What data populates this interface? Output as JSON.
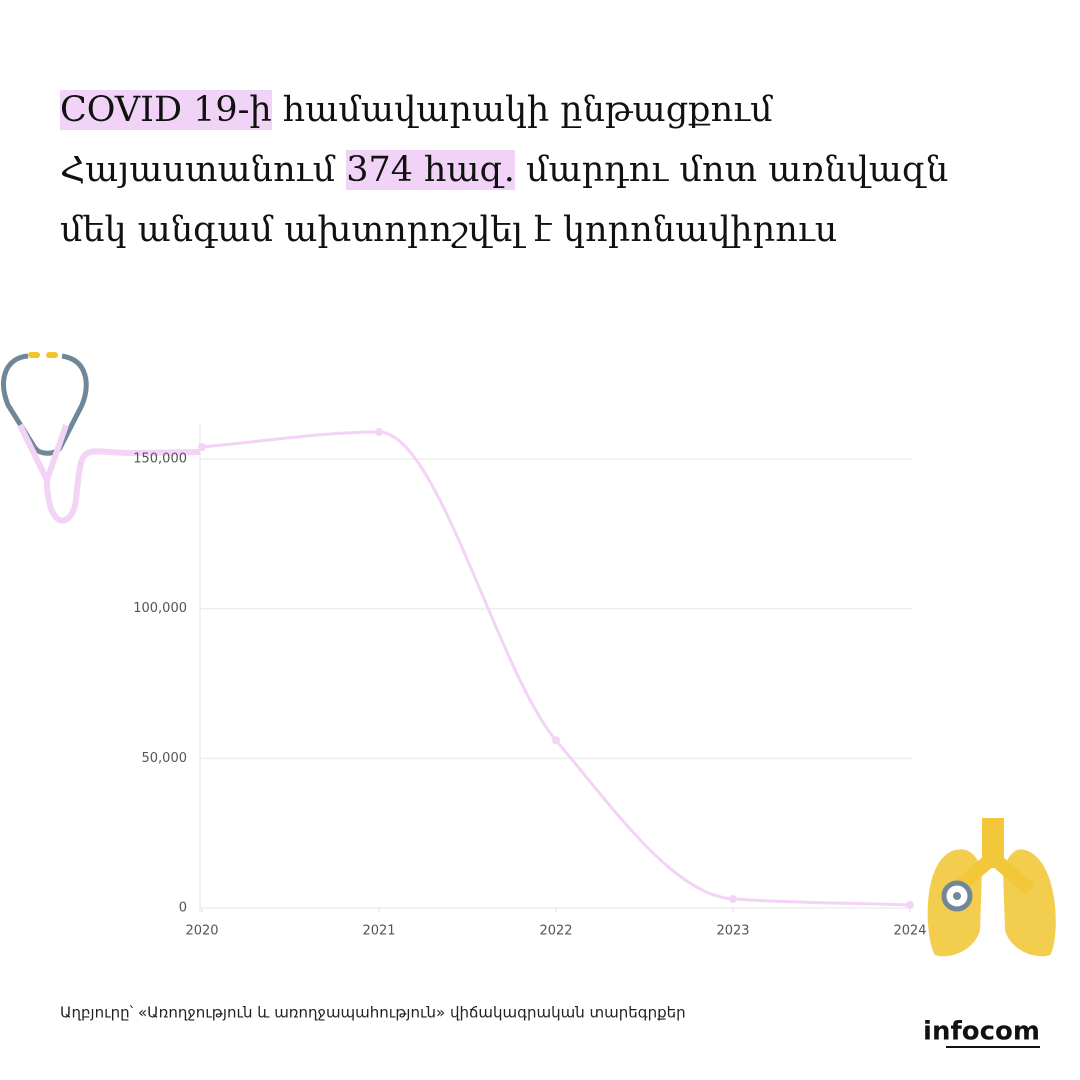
{
  "chart_data": {
    "type": "line",
    "title_parts": [
      "COVID 19-ի",
      " համավարակի ընթացքում Հայաստանում ",
      "374 հազ.",
      " մարդու մոտ առնվազն մեկ անգամ ախտորոշվել է կորոնավիրուս"
    ],
    "highlight_color": "#f1d3f7",
    "x": [
      2020,
      2021,
      2022,
      2023,
      2024
    ],
    "series": [
      {
        "color": "#f3d3f6",
        "values": [
          154000,
          159000,
          56000,
          3000,
          1000
        ]
      }
    ],
    "xlim": [
      2020,
      2024
    ],
    "xticks": [
      2020,
      2021,
      2022,
      2023,
      2024
    ],
    "ylim": [
      0,
      160000
    ],
    "yticks": [
      0,
      {
        "value": 50000,
        "label": "50,000"
      },
      {
        "value": 100000,
        "label": "100,000"
      },
      {
        "value": 150000,
        "label": "150,000"
      }
    ],
    "grid": true,
    "source": "Աղբյուրը՝ «Առողջություն և առողջապահություն» վիճակագրական տարեգրքեր",
    "brand": "infocom"
  }
}
